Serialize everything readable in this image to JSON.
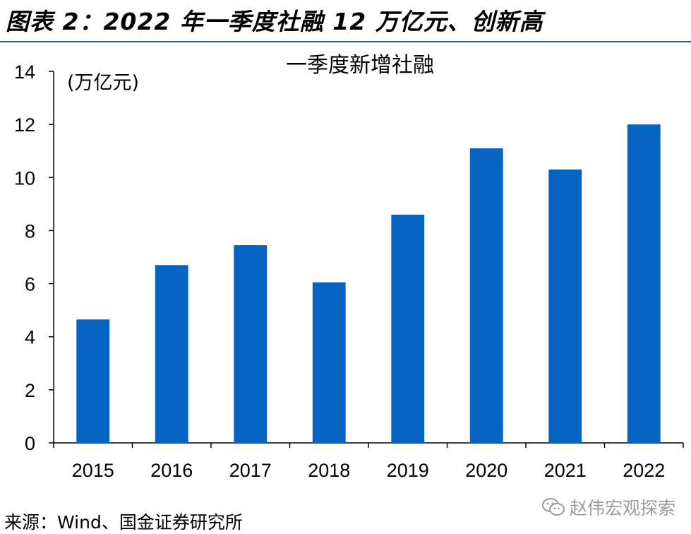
{
  "header": {
    "figure_title": "图表 2：2022 年一季度社融 12 万亿元、创新高"
  },
  "chart_data": {
    "type": "bar",
    "title": "一季度新增社融",
    "unit_label": "(万亿元)",
    "categories": [
      "2015",
      "2016",
      "2017",
      "2018",
      "2019",
      "2020",
      "2021",
      "2022"
    ],
    "values": [
      4.65,
      6.7,
      7.45,
      6.05,
      8.6,
      11.1,
      10.3,
      12.0
    ],
    "ylim": [
      0,
      14
    ],
    "yticks": [
      0,
      2,
      4,
      6,
      8,
      10,
      12,
      14
    ],
    "bar_color": "#0563c1",
    "grid": false,
    "legend": "none"
  },
  "footer": {
    "source": "来源：Wind、国金证券研究所"
  },
  "watermark": {
    "text": "赵伟宏观探索",
    "icon": "wechat-icon"
  }
}
